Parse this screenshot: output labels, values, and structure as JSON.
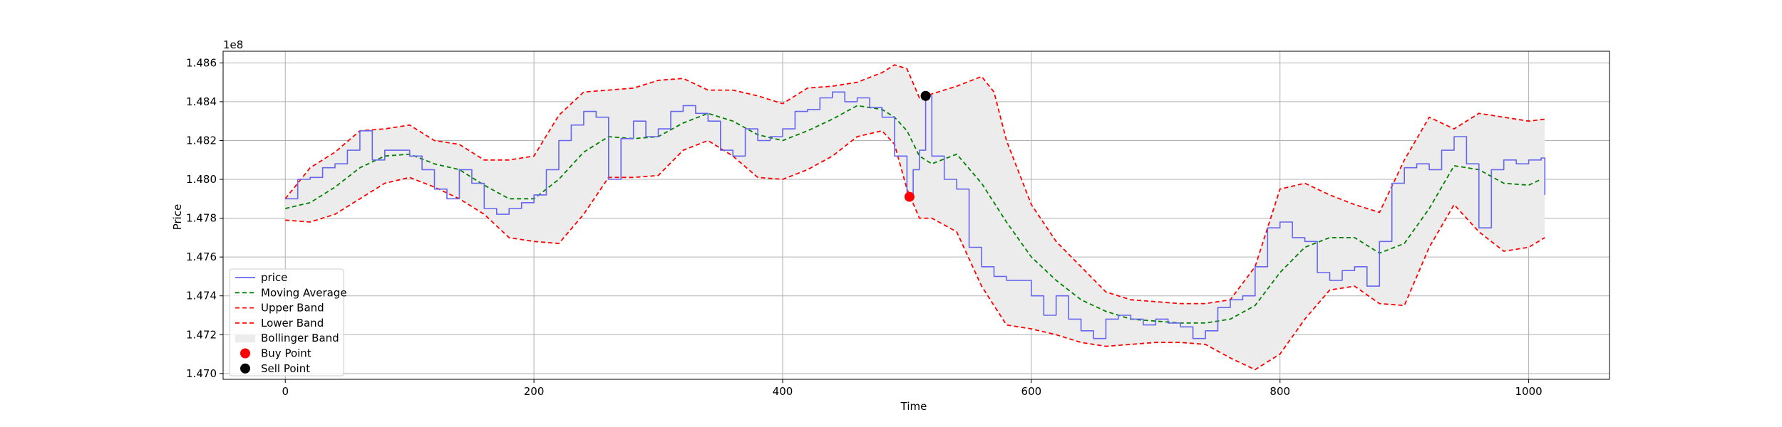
{
  "chart_data": {
    "type": "line",
    "title": "",
    "xlabel": "Time",
    "ylabel": "Price",
    "offset_label": "1e8",
    "xlim": [
      -50,
      1065
    ],
    "ylim": [
      1.4697,
      1.4866
    ],
    "x_ticks": [
      0,
      200,
      400,
      600,
      800,
      1000
    ],
    "x_tick_labels": [
      "0",
      "200",
      "400",
      "600",
      "800",
      "1000"
    ],
    "y_ticks": [
      1.47,
      1.472,
      1.474,
      1.476,
      1.478,
      1.48,
      1.482,
      1.484,
      1.486
    ],
    "y_tick_labels": [
      "1.470",
      "1.472",
      "1.474",
      "1.476",
      "1.478",
      "1.480",
      "1.482",
      "1.484",
      "1.486"
    ],
    "grid": true,
    "legend_position": "lower-left",
    "legend": [
      {
        "label": "price",
        "kind": "line",
        "color": "#6666ee",
        "dash": "solid"
      },
      {
        "label": "Moving Average",
        "kind": "line",
        "color": "#008000",
        "dash": "dashed"
      },
      {
        "label": "Upper Band",
        "kind": "line",
        "color": "#ff0000",
        "dash": "dashed"
      },
      {
        "label": "Lower Band",
        "kind": "line",
        "color": "#ff0000",
        "dash": "dashed"
      },
      {
        "label": "Bollinger Band",
        "kind": "patch",
        "color": "#ececec"
      },
      {
        "label": "Buy Point",
        "kind": "marker",
        "color": "#ff0000"
      },
      {
        "label": "Sell Point",
        "kind": "marker",
        "color": "#000000"
      }
    ],
    "series": [
      {
        "name": "price",
        "color": "#6666ee",
        "x": [
          0,
          10,
          20,
          30,
          40,
          50,
          60,
          70,
          80,
          90,
          100,
          110,
          120,
          130,
          140,
          150,
          160,
          170,
          180,
          190,
          200,
          210,
          220,
          230,
          240,
          250,
          260,
          270,
          280,
          290,
          300,
          310,
          320,
          330,
          340,
          350,
          360,
          370,
          380,
          390,
          400,
          410,
          420,
          430,
          440,
          450,
          460,
          470,
          480,
          490,
          500,
          505,
          510,
          515,
          520,
          530,
          540,
          550,
          560,
          570,
          580,
          590,
          600,
          610,
          620,
          630,
          640,
          650,
          660,
          670,
          680,
          690,
          700,
          710,
          720,
          730,
          740,
          750,
          760,
          770,
          780,
          790,
          800,
          810,
          820,
          830,
          840,
          850,
          860,
          870,
          880,
          890,
          900,
          910,
          920,
          930,
          940,
          950,
          960,
          970,
          980,
          990,
          1000,
          1010,
          1013
        ],
        "values": [
          1.479,
          1.48,
          1.4801,
          1.4806,
          1.4808,
          1.4815,
          1.4825,
          1.481,
          1.4815,
          1.4815,
          1.4812,
          1.4805,
          1.4795,
          1.479,
          1.4805,
          1.4798,
          1.4785,
          1.4782,
          1.4785,
          1.4788,
          1.4792,
          1.4805,
          1.482,
          1.4828,
          1.4835,
          1.4832,
          1.48,
          1.4821,
          1.483,
          1.4822,
          1.4826,
          1.4835,
          1.4838,
          1.4834,
          1.483,
          1.4815,
          1.4812,
          1.4826,
          1.482,
          1.4822,
          1.4826,
          1.4835,
          1.4836,
          1.4842,
          1.4845,
          1.484,
          1.4842,
          1.4837,
          1.4832,
          1.4812,
          1.4791,
          1.4805,
          1.4815,
          1.4843,
          1.4812,
          1.48,
          1.4795,
          1.4765,
          1.4755,
          1.475,
          1.4748,
          1.4748,
          1.474,
          1.473,
          1.474,
          1.4728,
          1.4722,
          1.4718,
          1.4728,
          1.473,
          1.4728,
          1.4725,
          1.4728,
          1.4726,
          1.4724,
          1.4718,
          1.4722,
          1.4734,
          1.4738,
          1.474,
          1.4755,
          1.4775,
          1.4778,
          1.477,
          1.4768,
          1.4752,
          1.4748,
          1.4753,
          1.4755,
          1.4745,
          1.4768,
          1.4798,
          1.4806,
          1.4808,
          1.4805,
          1.4815,
          1.4822,
          1.4808,
          1.4775,
          1.4805,
          1.481,
          1.4808,
          1.481,
          1.4811,
          1.4792
        ]
      },
      {
        "name": "Moving Average",
        "color": "#008000",
        "x": [
          0,
          20,
          40,
          60,
          80,
          100,
          120,
          140,
          160,
          180,
          200,
          220,
          240,
          260,
          280,
          300,
          320,
          340,
          360,
          380,
          400,
          420,
          440,
          460,
          480,
          490,
          500,
          510,
          520,
          540,
          560,
          580,
          600,
          620,
          640,
          660,
          680,
          700,
          720,
          740,
          760,
          780,
          800,
          820,
          840,
          860,
          880,
          900,
          920,
          940,
          960,
          980,
          1000,
          1010
        ],
        "values": [
          1.4785,
          1.4788,
          1.4796,
          1.4806,
          1.4812,
          1.4813,
          1.4808,
          1.4805,
          1.4797,
          1.479,
          1.479,
          1.48,
          1.4814,
          1.4822,
          1.4821,
          1.4822,
          1.4829,
          1.4834,
          1.483,
          1.4823,
          1.482,
          1.4825,
          1.4831,
          1.4838,
          1.4836,
          1.4832,
          1.4825,
          1.4812,
          1.4808,
          1.4813,
          1.4798,
          1.4778,
          1.476,
          1.4748,
          1.4738,
          1.4732,
          1.4728,
          1.4727,
          1.4726,
          1.4726,
          1.4728,
          1.4735,
          1.4752,
          1.4765,
          1.477,
          1.477,
          1.4762,
          1.4767,
          1.4785,
          1.4807,
          1.4805,
          1.4798,
          1.4797,
          1.48
        ]
      },
      {
        "name": "Upper Band",
        "color": "#ff0000",
        "x": [
          0,
          20,
          40,
          60,
          80,
          100,
          120,
          140,
          160,
          180,
          200,
          220,
          240,
          260,
          280,
          300,
          320,
          340,
          360,
          380,
          400,
          420,
          440,
          460,
          480,
          490,
          500,
          510,
          520,
          540,
          560,
          570,
          580,
          600,
          620,
          640,
          660,
          680,
          700,
          720,
          740,
          760,
          780,
          800,
          820,
          840,
          860,
          880,
          900,
          920,
          940,
          960,
          980,
          1000,
          1013
        ],
        "values": [
          1.479,
          1.4806,
          1.4814,
          1.4825,
          1.4826,
          1.4828,
          1.482,
          1.4818,
          1.481,
          1.481,
          1.4812,
          1.4833,
          1.4845,
          1.4846,
          1.4847,
          1.4851,
          1.4852,
          1.4846,
          1.4846,
          1.4843,
          1.4839,
          1.4847,
          1.4848,
          1.485,
          1.4855,
          1.4859,
          1.4857,
          1.4842,
          1.4844,
          1.4848,
          1.4853,
          1.4845,
          1.482,
          1.4787,
          1.4768,
          1.4755,
          1.4742,
          1.4738,
          1.4737,
          1.4736,
          1.4736,
          1.4738,
          1.4755,
          1.4795,
          1.4798,
          1.4792,
          1.4787,
          1.4783,
          1.481,
          1.4832,
          1.4826,
          1.4834,
          1.4832,
          1.483,
          1.4831
        ]
      },
      {
        "name": "Lower Band",
        "color": "#ff0000",
        "x": [
          0,
          20,
          40,
          60,
          80,
          100,
          120,
          140,
          160,
          180,
          200,
          220,
          240,
          260,
          280,
          300,
          320,
          340,
          360,
          380,
          400,
          420,
          440,
          460,
          480,
          490,
          500,
          510,
          520,
          540,
          560,
          580,
          600,
          620,
          640,
          660,
          680,
          700,
          720,
          740,
          760,
          780,
          790,
          800,
          820,
          840,
          860,
          880,
          900,
          920,
          940,
          960,
          980,
          1000,
          1013
        ],
        "values": [
          1.4779,
          1.4778,
          1.4782,
          1.479,
          1.4798,
          1.4801,
          1.4796,
          1.479,
          1.4782,
          1.477,
          1.4768,
          1.4767,
          1.4782,
          1.4801,
          1.4801,
          1.4802,
          1.4815,
          1.482,
          1.4812,
          1.4801,
          1.48,
          1.4805,
          1.4812,
          1.4822,
          1.4825,
          1.4818,
          1.4795,
          1.478,
          1.478,
          1.4773,
          1.4745,
          1.4725,
          1.4723,
          1.472,
          1.4716,
          1.4714,
          1.4715,
          1.4716,
          1.4716,
          1.4715,
          1.4708,
          1.4702,
          1.4706,
          1.471,
          1.4728,
          1.4743,
          1.4745,
          1.4736,
          1.4735,
          1.4765,
          1.4787,
          1.4773,
          1.4763,
          1.4765,
          1.477
        ]
      }
    ],
    "points": [
      {
        "name": "Buy Point",
        "x": 502,
        "y": 1.4791,
        "color": "#ff0000"
      },
      {
        "name": "Sell Point",
        "x": 515,
        "y": 1.4843,
        "color": "#000000"
      }
    ]
  }
}
